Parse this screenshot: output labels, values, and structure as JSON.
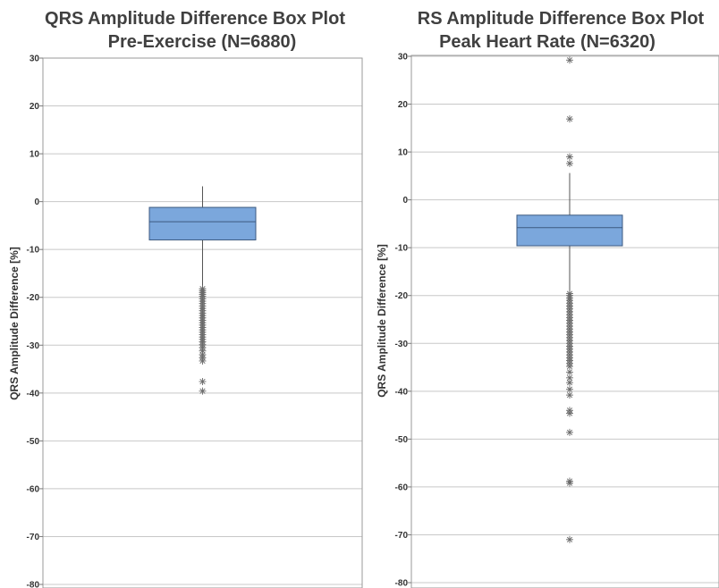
{
  "chart_data": [
    {
      "type": "box",
      "title_lines": [
        "QRS Amplitude Difference Box Plot",
        "Pre-Exercise (N=6880)"
      ],
      "xlabel": "",
      "ylabel": "QRS Amplitude Difference [%]",
      "ylim": [
        -80,
        30
      ],
      "yticks": [
        30,
        20,
        10,
        0,
        -10,
        -20,
        -30,
        -40,
        -50,
        -60,
        -70,
        -80
      ],
      "grid": true,
      "box": {
        "q1": -8,
        "median": -4.2,
        "q3": -1.2,
        "whisker_low": -18,
        "whisker_high": 3.2
      },
      "box_color": "#7ba7dc",
      "outliers": [
        -18.2,
        -18.6,
        -19.0,
        -19.4,
        -19.8,
        -20.3,
        -20.8,
        -21.3,
        -21.8,
        -22.3,
        -22.8,
        -23.3,
        -23.8,
        -24.3,
        -24.8,
        -25.3,
        -25.8,
        -26.3,
        -26.8,
        -27.3,
        -27.8,
        -28.3,
        -28.8,
        -29.3,
        -29.9,
        -30.5,
        -31.2,
        -32.0,
        -32.6,
        -33.3,
        -37.6,
        -39.6
      ]
    },
    {
      "type": "box",
      "title_lines": [
        "RS Amplitude Difference Box Plot",
        "Peak Heart Rate (N=6320)"
      ],
      "xlabel": "",
      "ylabel": "QRS Amplitude Difference [%]",
      "ylim": [
        -80,
        30
      ],
      "yticks": [
        30,
        20,
        10,
        0,
        -10,
        -20,
        -30,
        -40,
        -50,
        -60,
        -70,
        -80
      ],
      "grid": true,
      "box": {
        "q1": -9.6,
        "median": -5.8,
        "q3": -3.2,
        "whisker_low": -19.4,
        "whisker_high": 5.6
      },
      "box_color": "#7ba7dc",
      "outliers": [
        29.2,
        16.9,
        9.0,
        7.6,
        -19.6,
        -20.0,
        -20.5,
        -21.0,
        -21.6,
        -22.2,
        -22.8,
        -23.4,
        -24.0,
        -24.6,
        -25.2,
        -25.8,
        -26.4,
        -27.0,
        -27.6,
        -28.2,
        -28.8,
        -29.4,
        -30.0,
        -30.6,
        -31.2,
        -31.8,
        -32.4,
        -33.0,
        -33.6,
        -34.2,
        -34.8,
        -36.0,
        -37.2,
        -38.2,
        -39.6,
        -40.8,
        -44.0,
        -44.6,
        -48.6,
        -58.8,
        -59.2,
        -71.0
      ]
    }
  ]
}
